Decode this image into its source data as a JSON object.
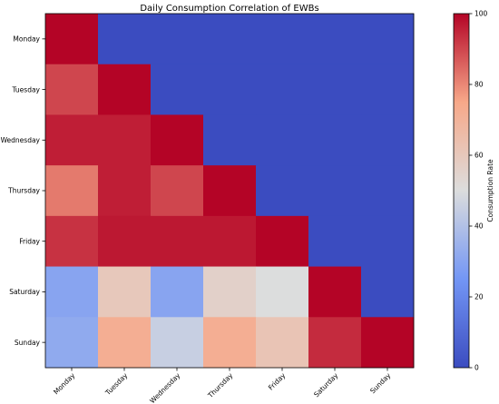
{
  "chart_data": {
    "type": "heatmap",
    "title": "Daily Consumption Correlation of EWBs",
    "x_categories": [
      "Monday",
      "Tuesday",
      "Wednesday",
      "Thursday",
      "Friday",
      "Saturday",
      "Sunday"
    ],
    "y_categories": [
      "Monday",
      "Tuesday",
      "Wednesday",
      "Thursday",
      "Friday",
      "Saturday",
      "Sunday"
    ],
    "values": [
      [
        100,
        0,
        0,
        0,
        0,
        0,
        0
      ],
      [
        90,
        100,
        0,
        0,
        0,
        0,
        0
      ],
      [
        96,
        96,
        100,
        0,
        0,
        0,
        0
      ],
      [
        82,
        96,
        90,
        100,
        0,
        0,
        0
      ],
      [
        93,
        97,
        97,
        97,
        100,
        0,
        0
      ],
      [
        30,
        60,
        30,
        56,
        50,
        100,
        0
      ],
      [
        32,
        72,
        45,
        72,
        62,
        94,
        100
      ]
    ],
    "colorbar": {
      "label": "Consumption Rate",
      "range": [
        0,
        100
      ],
      "ticks": [
        0,
        20,
        40,
        60,
        80,
        100
      ],
      "colormap": "coolwarm"
    }
  }
}
